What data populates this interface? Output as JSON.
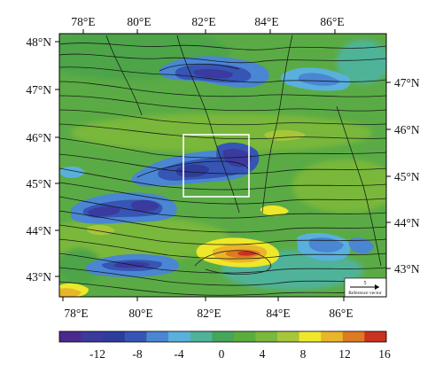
{
  "map": {
    "lon_labels_top": [
      "78°E",
      "80°E",
      "82°E",
      "84°E",
      "86°E"
    ],
    "lon_labels_bottom": [
      "78°E",
      "80°E",
      "82°E",
      "84°E",
      "86°E"
    ],
    "lat_labels_left": [
      "48°N",
      "47°N",
      "46°N",
      "45°N",
      "44°N",
      "43°N"
    ],
    "lat_labels_right": [
      "47°N",
      "46°N",
      "45°N",
      "44°N",
      "43°N"
    ],
    "reference_vector": {
      "value": "5",
      "label": "Reference vector"
    }
  },
  "colorbar": {
    "ticks": [
      "-12",
      "-8",
      "-4",
      "0",
      "4",
      "8",
      "12",
      "16"
    ],
    "colors": [
      "#4a2a8c",
      "#3b3a9e",
      "#2e3d9c",
      "#3655b5",
      "#4a86d2",
      "#5ab0dc",
      "#4fb39a",
      "#44a65a",
      "#5aad3c",
      "#79b83a",
      "#a7c63a",
      "#eee82a",
      "#e9b52a",
      "#de7a22",
      "#c8321e"
    ]
  },
  "colors": {
    "background_field": "#5aab45",
    "highlight_box": "#ffffff",
    "streamline": "#111111"
  }
}
